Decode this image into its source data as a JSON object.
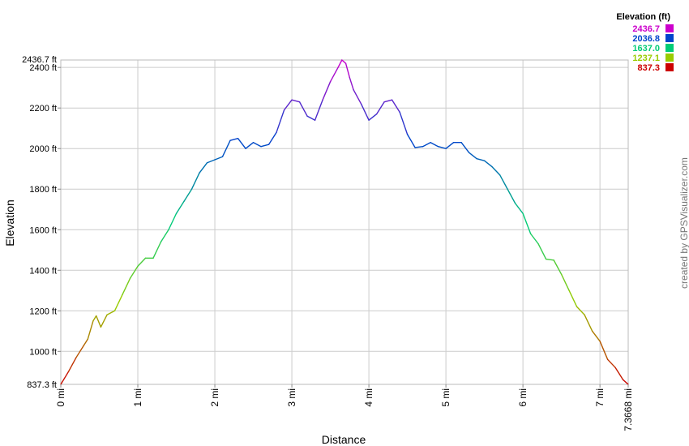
{
  "chart_data": {
    "type": "line",
    "xlabel": "Distance",
    "ylabel": "Elevation",
    "credit": "created by GPSVisualizer.com",
    "x_unit": "mi",
    "y_unit": "ft",
    "xlim": [
      0,
      7.3668
    ],
    "ylim": [
      837.3,
      2436.7
    ],
    "x_ticks": [
      0,
      1,
      2,
      3,
      4,
      5,
      6,
      7
    ],
    "x_tick_labels": [
      "0 mi",
      "1 mi",
      "2 mi",
      "3 mi",
      "4 mi",
      "5 mi",
      "6 mi",
      "7 mi"
    ],
    "x_end_label": "7.3668 mi",
    "y_ticks": [
      1000,
      1200,
      1400,
      1600,
      1800,
      2000,
      2200,
      2400
    ],
    "y_tick_labels": [
      "1000 ft",
      "1200 ft",
      "1400 ft",
      "1600 ft",
      "1800 ft",
      "2000 ft",
      "2200 ft",
      "2400 ft"
    ],
    "y_min_label": "837.3 ft",
    "y_max_label": "2436.7 ft",
    "grid": true,
    "legend": {
      "title": "Elevation (ft)",
      "placement": "top-right",
      "entries": [
        {
          "label": "2436.7",
          "color": "#cc00cc"
        },
        {
          "label": "2036.8",
          "color": "#0044cc"
        },
        {
          "label": "1637.0",
          "color": "#00cc77"
        },
        {
          "label": "1237.1",
          "color": "#99cc00"
        },
        {
          "label": "837.3",
          "color": "#cc0000"
        }
      ]
    },
    "series": [
      {
        "x": [
          0,
          0.1,
          0.2,
          0.3,
          0.35,
          0.42,
          0.46,
          0.52,
          0.6,
          0.7,
          0.8,
          0.9,
          1.0,
          1.1,
          1.2,
          1.3,
          1.4,
          1.5,
          1.6,
          1.7,
          1.8,
          1.9,
          2.0,
          2.1,
          2.2,
          2.3,
          2.4,
          2.5,
          2.6,
          2.7,
          2.8,
          2.9,
          3.0,
          3.1,
          3.2,
          3.3,
          3.4,
          3.5,
          3.6,
          3.65,
          3.7,
          3.75,
          3.8,
          3.9,
          4.0,
          4.1,
          4.2,
          4.3,
          4.4,
          4.5,
          4.6,
          4.7,
          4.8,
          4.9,
          5.0,
          5.1,
          5.2,
          5.3,
          5.4,
          5.5,
          5.6,
          5.7,
          5.8,
          5.9,
          6.0,
          6.1,
          6.2,
          6.3,
          6.4,
          6.5,
          6.6,
          6.7,
          6.8,
          6.9,
          7.0,
          7.1,
          7.2,
          7.3,
          7.3668
        ],
        "y": [
          837.3,
          900,
          970,
          1030,
          1060,
          1150,
          1175,
          1120,
          1180,
          1200,
          1280,
          1360,
          1420,
          1460,
          1460,
          1540,
          1600,
          1680,
          1740,
          1800,
          1880,
          1930,
          1945,
          1960,
          2040,
          2050,
          2000,
          2030,
          2010,
          2020,
          2080,
          2190,
          2240,
          2230,
          2160,
          2140,
          2240,
          2330,
          2400,
          2436.7,
          2420,
          2350,
          2290,
          2220,
          2140,
          2170,
          2230,
          2240,
          2180,
          2070,
          2005,
          2010,
          2030,
          2010,
          2000,
          2030,
          2030,
          1980,
          1950,
          1940,
          1910,
          1870,
          1800,
          1730,
          1680,
          1580,
          1530,
          1455,
          1450,
          1380,
          1300,
          1220,
          1180,
          1100,
          1050,
          960,
          920,
          860,
          837.3
        ]
      }
    ]
  }
}
